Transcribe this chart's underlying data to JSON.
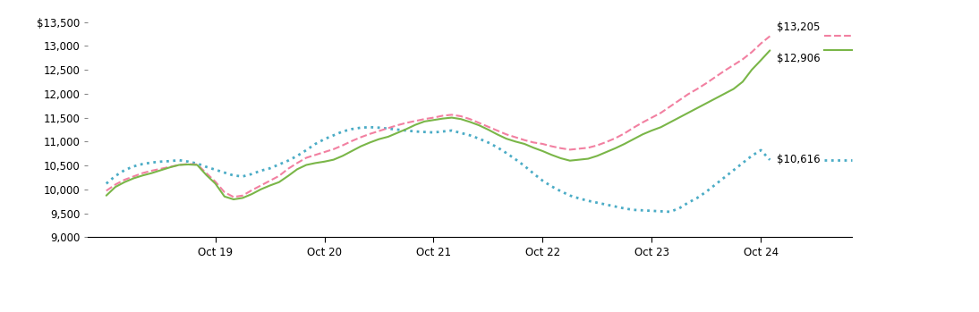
{
  "ylim": [
    9000,
    13700
  ],
  "yticks": [
    9000,
    9500,
    10000,
    10500,
    11000,
    11500,
    12000,
    12500,
    13000,
    13500
  ],
  "xtick_labels": [
    "Oct 19",
    "Oct 20",
    "Oct 21",
    "Oct 22",
    "Oct 23",
    "Oct 24"
  ],
  "end_labels": {
    "fund": "$12,906",
    "bloomberg_universal": "$10,616",
    "bloomberg_hyi": "$13,205"
  },
  "colors": {
    "fund": "#7ab648",
    "bloomberg_universal": "#4bacc6",
    "bloomberg_hyi": "#f280a1"
  },
  "fund": [
    9870,
    10050,
    10150,
    10230,
    10290,
    10340,
    10400,
    10460,
    10510,
    10520,
    10510,
    10300,
    10120,
    9850,
    9790,
    9820,
    9900,
    10000,
    10080,
    10150,
    10280,
    10420,
    10510,
    10550,
    10580,
    10620,
    10700,
    10800,
    10900,
    10980,
    11050,
    11100,
    11180,
    11260,
    11350,
    11420,
    11450,
    11480,
    11500,
    11470,
    11410,
    11340,
    11250,
    11150,
    11060,
    11000,
    10950,
    10870,
    10800,
    10720,
    10650,
    10600,
    10620,
    10640,
    10700,
    10780,
    10860,
    10950,
    11050,
    11150,
    11230,
    11300,
    11400,
    11500,
    11600,
    11700,
    11800,
    11900,
    12000,
    12100,
    12250,
    12500,
    12700,
    12906
  ],
  "bloomberg_universal": [
    10120,
    10280,
    10400,
    10480,
    10530,
    10560,
    10580,
    10590,
    10610,
    10580,
    10540,
    10470,
    10410,
    10350,
    10290,
    10270,
    10320,
    10390,
    10440,
    10520,
    10600,
    10700,
    10820,
    10950,
    11050,
    11130,
    11210,
    11260,
    11290,
    11300,
    11290,
    11270,
    11250,
    11230,
    11210,
    11200,
    11190,
    11210,
    11230,
    11180,
    11130,
    11060,
    10980,
    10880,
    10760,
    10630,
    10490,
    10330,
    10180,
    10060,
    9960,
    9870,
    9810,
    9760,
    9720,
    9680,
    9640,
    9600,
    9570,
    9560,
    9550,
    9540,
    9530,
    9600,
    9720,
    9820,
    9950,
    10100,
    10250,
    10400,
    10550,
    10700,
    10820,
    10616
  ],
  "bloomberg_hyi": [
    9970,
    10100,
    10200,
    10270,
    10340,
    10390,
    10430,
    10470,
    10510,
    10530,
    10520,
    10340,
    10160,
    9940,
    9840,
    9870,
    9980,
    10080,
    10180,
    10280,
    10430,
    10550,
    10660,
    10720,
    10780,
    10840,
    10920,
    11010,
    11090,
    11160,
    11220,
    11280,
    11340,
    11390,
    11430,
    11470,
    11500,
    11540,
    11560,
    11530,
    11470,
    11390,
    11310,
    11230,
    11150,
    11090,
    11030,
    10980,
    10950,
    10900,
    10860,
    10830,
    10850,
    10870,
    10920,
    10990,
    11070,
    11170,
    11290,
    11400,
    11500,
    11600,
    11730,
    11860,
    11990,
    12100,
    12220,
    12350,
    12480,
    12600,
    12720,
    12870,
    13050,
    13205
  ]
}
